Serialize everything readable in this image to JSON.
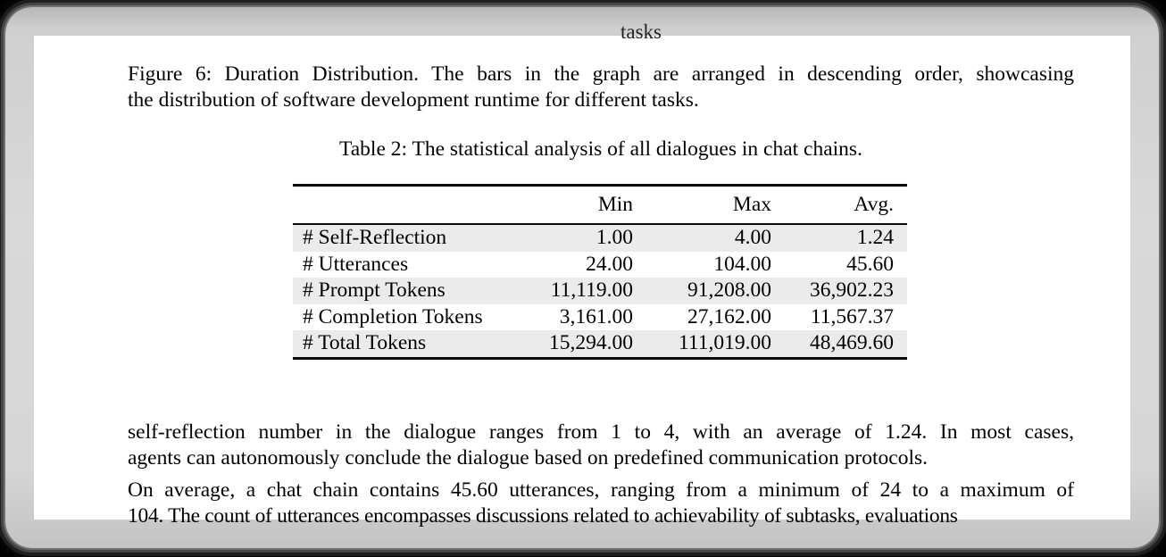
{
  "colors": {
    "row_stripe": "#ebebeb",
    "page_background": "#ffffff",
    "frame_gray": "#d6d6d6",
    "text": "#000000"
  },
  "page": {
    "clipped_axis_label": "tasks",
    "figure_caption": {
      "line1": "Figure 6: Duration Distribution. The bars in the graph are arranged in descending order, showcasing",
      "line2": "the distribution of software development runtime for different tasks."
    },
    "table": {
      "caption": "Table 2: The statistical analysis of all dialogues in chat chains.",
      "columns": [
        "",
        "Min",
        "Max",
        "Avg."
      ],
      "rows": [
        {
          "label": "# Self-Reflection",
          "min": "1.00",
          "max": "4.00",
          "avg": "1.24"
        },
        {
          "label": "# Utterances",
          "min": "24.00",
          "max": "104.00",
          "avg": "45.60"
        },
        {
          "label": "# Prompt Tokens",
          "min": "11,119.00",
          "max": "91,208.00",
          "avg": "36,902.23"
        },
        {
          "label": "# Completion Tokens",
          "min": "3,161.00",
          "max": "27,162.00",
          "avg": "11,567.37"
        },
        {
          "label": "# Total Tokens",
          "min": "15,294.00",
          "max": "111,019.00",
          "avg": "48,469.60"
        }
      ]
    },
    "paragraph1": {
      "line1": "self-reflection number in the dialogue ranges from 1 to 4, with an average of 1.24. In most cases,",
      "line2": "agents can autonomously conclude the dialogue based on predefined communication protocols."
    },
    "paragraph2": {
      "line1": "On average, a chat chain contains 45.60 utterances, ranging from a minimum of 24 to a maximum of",
      "line2": "104. The count of utterances encompasses discussions related to achievability of subtasks, evaluations"
    }
  }
}
